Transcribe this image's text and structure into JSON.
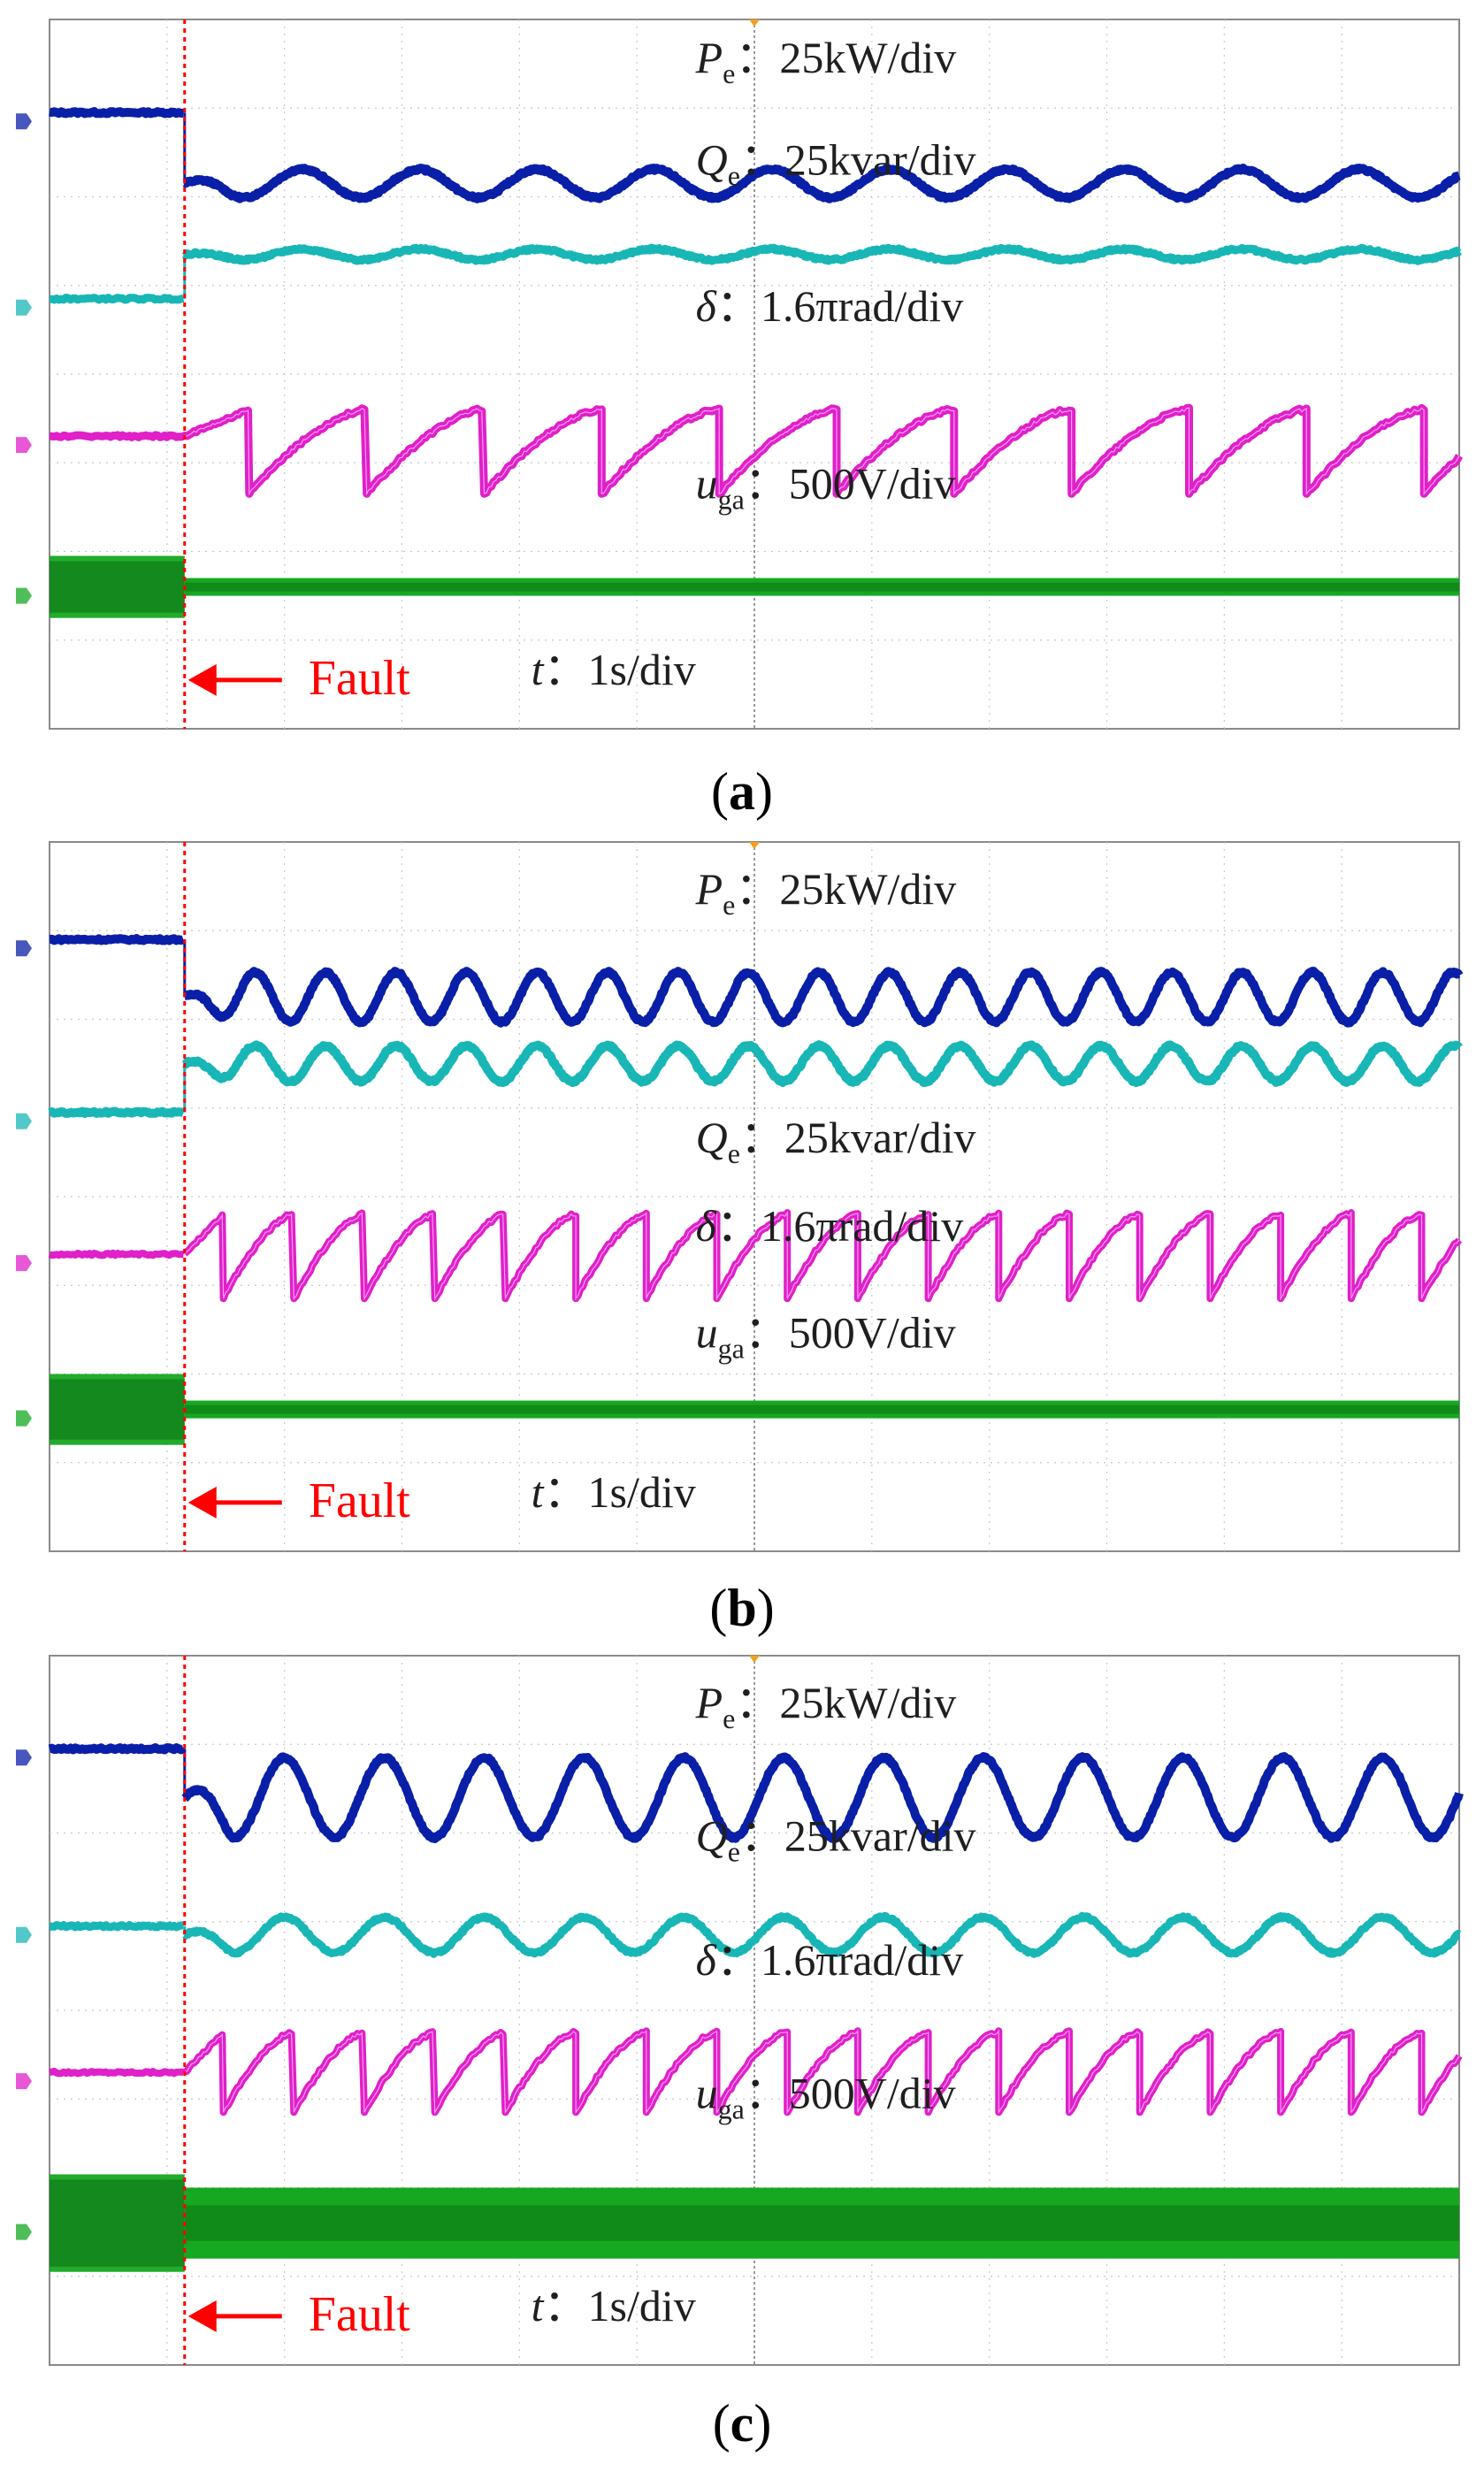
{
  "chart_data": [
    {
      "type": "line",
      "panel": "a",
      "caption_letter": "a",
      "grid": true,
      "x_divisions": 12,
      "y_divisions": 8,
      "fault_label": "Fault",
      "fault_time_div": 1.15,
      "time_label_var": "t",
      "time_label_rest": "：1s/div",
      "series": [
        {
          "name": "Pe",
          "label_main": "P",
          "label_sub": "e",
          "label_rest": "：25kW/div",
          "color": "#0a1fa8",
          "pre_fault_level": 6.95,
          "post_mean": 6.15,
          "osc_amp": 0.16,
          "period_div": 1.0,
          "shape": "sine",
          "thickness": 0.1
        },
        {
          "name": "Qe",
          "label_main": "Q",
          "label_sub": "e",
          "label_rest": "：25kvar/div",
          "color": "#19b6b6",
          "pre_fault_level": 4.85,
          "post_mean": 5.35,
          "osc_amp": 0.06,
          "period_div": 1.0,
          "shape": "sine",
          "thickness": 0.09
        },
        {
          "name": "delta",
          "label_main": "δ",
          "label_sub": "",
          "label_rest": "：1.6πrad/div",
          "color": "#e020c8",
          "pre_fault_level": 3.3,
          "post_low": 2.65,
          "post_high": 3.6,
          "period_div": 1.0,
          "shape": "sawtooth",
          "thickness": 0.09
        },
        {
          "name": "uga",
          "label_main": "u",
          "label_sub": "ga",
          "label_rest": "：500V/div",
          "color": "#15a820",
          "pre_fault_level": 1.6,
          "pre_fault_band": 0.7,
          "post_band": 0.2,
          "shape": "band"
        }
      ]
    },
    {
      "type": "line",
      "panel": "b",
      "caption_letter": "b",
      "grid": true,
      "x_divisions": 12,
      "y_divisions": 8,
      "fault_label": "Fault",
      "fault_time_div": 1.15,
      "time_label_var": "t",
      "time_label_rest": "：1s/div",
      "series": [
        {
          "name": "Pe",
          "label_main": "P",
          "label_sub": "e",
          "label_rest": "：25kW/div",
          "color": "#0a1fa8",
          "pre_fault_level": 6.9,
          "post_mean": 6.25,
          "osc_amp": 0.28,
          "period_div": 0.6,
          "shape": "sine",
          "thickness": 0.1
        },
        {
          "name": "Qe",
          "label_main": "Q",
          "label_sub": "e",
          "label_rest": "：25kvar/div",
          "color": "#19b6b6",
          "pre_fault_level": 4.95,
          "post_mean": 5.5,
          "osc_amp": 0.2,
          "period_div": 0.6,
          "shape": "sine",
          "thickness": 0.1
        },
        {
          "name": "delta",
          "label_main": "δ",
          "label_sub": "",
          "label_rest": "：1.6πrad/div",
          "color": "#e020c8",
          "pre_fault_level": 3.35,
          "post_low": 2.85,
          "post_high": 3.8,
          "period_div": 0.6,
          "shape": "sawtooth",
          "thickness": 0.08
        },
        {
          "name": "uga",
          "label_main": "u",
          "label_sub": "ga",
          "label_rest": "：500V/div",
          "color": "#15a820",
          "pre_fault_level": 1.6,
          "pre_fault_band": 0.8,
          "post_band": 0.2,
          "shape": "band"
        }
      ]
    },
    {
      "type": "line",
      "panel": "c",
      "caption_letter": "c",
      "grid": true,
      "x_divisions": 12,
      "y_divisions": 8,
      "fault_label": "Fault",
      "fault_time_div": 1.15,
      "time_label_var": "t",
      "time_label_rest": "：1s/div",
      "series": [
        {
          "name": "Pe",
          "label_main": "P",
          "label_sub": "e",
          "label_rest": "：25kW/div",
          "color": "#0a1fa8",
          "pre_fault_level": 6.95,
          "post_mean": 6.4,
          "osc_amp": 0.45,
          "period_div": 0.85,
          "shape": "sine",
          "thickness": 0.1
        },
        {
          "name": "Qe",
          "label_main": "Q",
          "label_sub": "e",
          "label_rest": "：25kvar/div",
          "color": "#19b6b6",
          "pre_fault_level": 4.95,
          "post_mean": 4.85,
          "osc_amp": 0.2,
          "period_div": 0.85,
          "shape": "sine",
          "thickness": 0.09
        },
        {
          "name": "delta",
          "label_main": "δ",
          "label_sub": "",
          "label_rest": "：1.6πrad/div",
          "color": "#e020c8",
          "pre_fault_level": 3.3,
          "post_low": 2.85,
          "post_high": 3.75,
          "period_div": 0.6,
          "shape": "sawtooth",
          "thickness": 0.08
        },
        {
          "name": "uga",
          "label_main": "u",
          "label_sub": "ga",
          "label_rest": "：500V/div",
          "color": "#15a820",
          "pre_fault_level": 1.6,
          "pre_fault_band": 1.1,
          "post_band": 0.8,
          "shape": "band"
        }
      ]
    }
  ]
}
